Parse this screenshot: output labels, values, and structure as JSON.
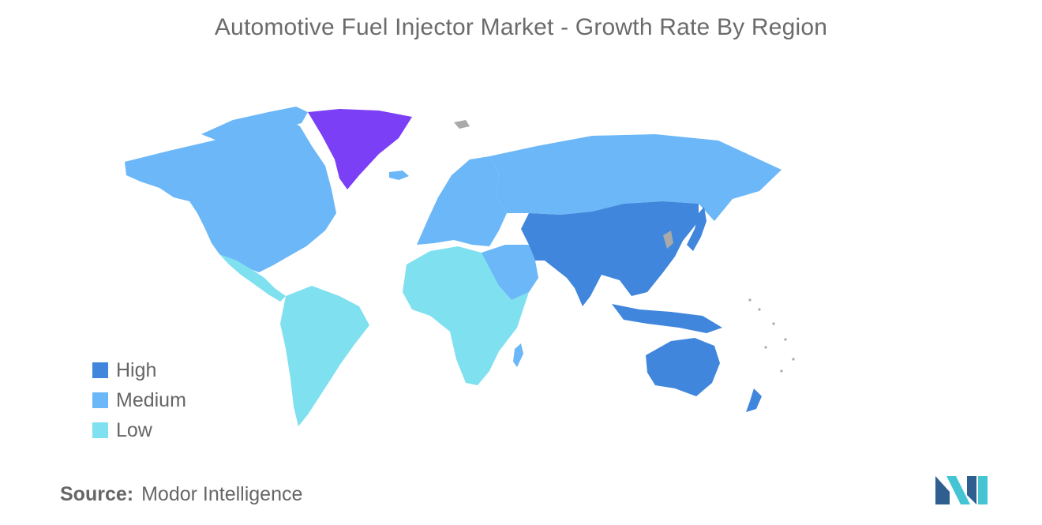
{
  "title": "Automotive Fuel Injector Market - Growth Rate By Region",
  "legend": [
    {
      "label": "High",
      "color": "#3f86dc"
    },
    {
      "label": "Medium",
      "color": "#6bb7f7"
    },
    {
      "label": "Low",
      "color": "#7fe0ef"
    }
  ],
  "colors": {
    "high": "#3f86dc",
    "medium": "#6bb7f7",
    "low": "#7fe0ef",
    "greenland": "#7b3ff5",
    "no_data": "#a9a9a9",
    "logo_dark": "#2f5f8f",
    "logo_light": "#45c5d3"
  },
  "regions": [
    {
      "name": "North America",
      "level": "Medium"
    },
    {
      "name": "Europe",
      "level": "Medium"
    },
    {
      "name": "Russia",
      "level": "Medium"
    },
    {
      "name": "Middle East",
      "level": "Medium"
    },
    {
      "name": "Asia-Pacific",
      "level": "High"
    },
    {
      "name": "South America",
      "level": "Low"
    },
    {
      "name": "Africa",
      "level": "Low"
    }
  ],
  "source": {
    "label": "Source:",
    "value": "Modor Intelligence"
  }
}
